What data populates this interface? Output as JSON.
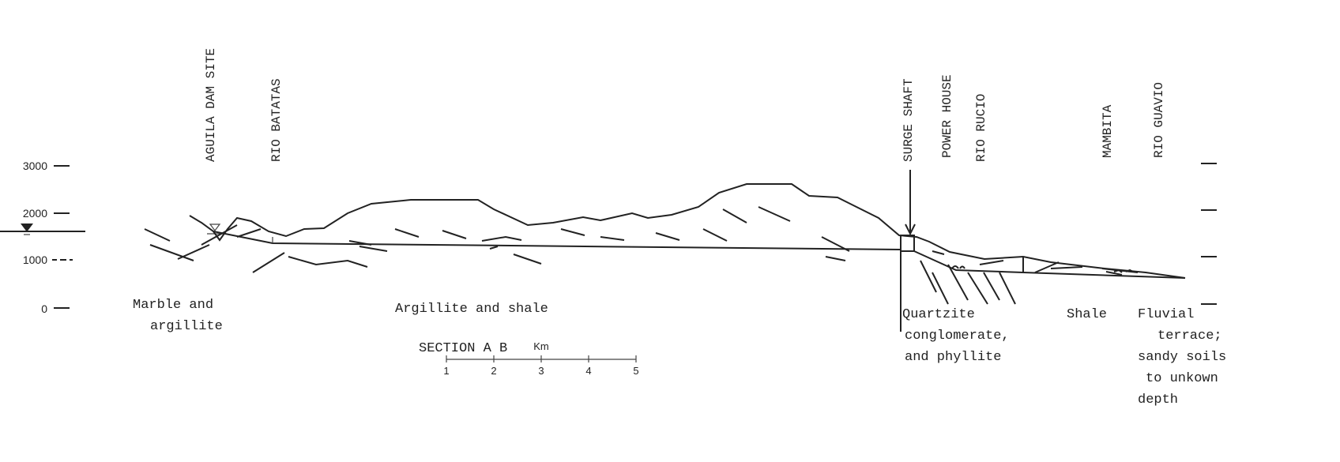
{
  "features": [
    {
      "label": "AGUILA DAM SITE"
    },
    {
      "label": "RIO BATATAS"
    },
    {
      "label": "SURGE SHAFT"
    },
    {
      "label": "POWER HOUSE"
    },
    {
      "label": "RIO RUCIO"
    },
    {
      "label": "MAMBITA"
    },
    {
      "label": "RIO GUAVIO"
    }
  ],
  "elevation_labels": [
    "3000",
    "2000",
    "1000",
    "0"
  ],
  "rock_units": [
    {
      "lines": [
        "Marble and",
        "argillite"
      ]
    },
    {
      "lines": [
        "Argillite and shale"
      ]
    },
    {
      "lines": [
        "Quartzite",
        "conglomerate,",
        "and phyllite"
      ]
    },
    {
      "lines": [
        "Shale"
      ]
    },
    {
      "lines": [
        "Fluvial",
        "terrace;",
        "sandy soils",
        "to unkown",
        "depth"
      ]
    }
  ],
  "section_title": "SECTION A B",
  "scale_bar": {
    "unit": "Km",
    "labels": [
      "1",
      "2",
      "3",
      "4",
      "5"
    ]
  }
}
